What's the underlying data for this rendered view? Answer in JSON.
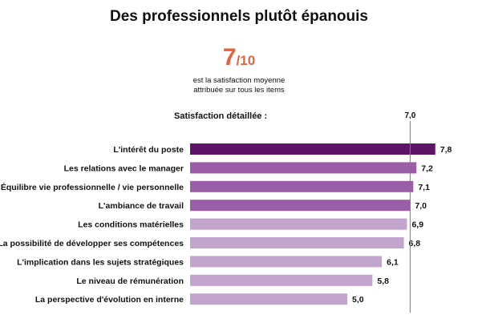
{
  "header": {
    "title": "Des professionnels plutôt épanouis",
    "score_value": "7",
    "score_denominator": "/10",
    "score_caption_line1": "est la satisfaction moyenne",
    "score_caption_line2": "attribuée sur tous les items"
  },
  "colors": {
    "accent": "#e8603c",
    "bar_dark": "#5e1466",
    "bar_mid": "#9b5da8",
    "bar_light": "#c2a4cf",
    "reference_line": "#7a7a7a"
  },
  "chart_data": {
    "type": "bar",
    "orientation": "horizontal",
    "title": "Satisfaction détaillée :",
    "categories": [
      "L'intérêt du poste",
      "Les relations avec le manager",
      "Équilibre vie professionnelle / vie personnelle",
      "L'ambiance de travail",
      "Les conditions matérielles",
      "La possibilité de développer ses compétences",
      "L'implication dans les sujets stratégiques",
      "Le niveau de rémunération",
      "La perspective d'évolution en interne"
    ],
    "values": [
      7.8,
      7.2,
      7.1,
      7.0,
      6.9,
      6.8,
      6.1,
      5.8,
      5.0
    ],
    "value_labels": [
      "7,8",
      "7,2",
      "7,1",
      "7,0",
      "6,9",
      "6,8",
      "6,1",
      "5,8",
      "5,0"
    ],
    "reference_value": 7.0,
    "reference_label": "7,0",
    "xlim": [
      0,
      8
    ],
    "grid": false,
    "legend": "none"
  }
}
